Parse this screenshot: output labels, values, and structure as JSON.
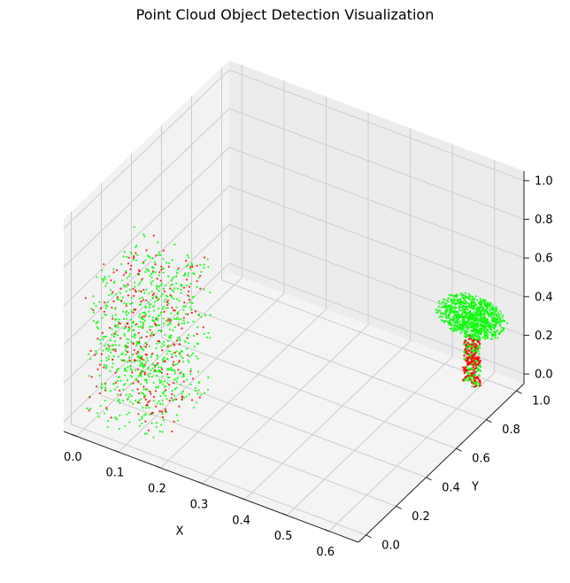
{
  "chart_data": {
    "type": "scatter",
    "projection": "3d",
    "title": "Point Cloud Object Detection Visualization",
    "xlabel": "X",
    "ylabel": "Y",
    "zlabel": "",
    "xlim": [
      -0.03,
      0.67
    ],
    "ylim": [
      -0.05,
      1.05
    ],
    "zlim": [
      -0.05,
      1.05
    ],
    "x_ticks": [
      "0.0",
      "0.1",
      "0.2",
      "0.3",
      "0.4",
      "0.5",
      "0.6"
    ],
    "y_ticks": [
      "0.0",
      "0.2",
      "0.4",
      "0.6",
      "0.8",
      "1.0"
    ],
    "z_ticks": [
      "0.0",
      "0.2",
      "0.4",
      "0.6",
      "0.8",
      "1.0"
    ],
    "grid": true,
    "colors": {
      "green": "#00ff00",
      "red": "#ff0000",
      "pane": "#f2f2f2",
      "grid": "#cccccc"
    },
    "objects": [
      {
        "shape": "box",
        "x_range": [
          0.0,
          0.18
        ],
        "y_range": [
          0.0,
          0.35
        ],
        "z_range": [
          0.0,
          0.75
        ],
        "point_count": 1000,
        "red_fraction": 0.25
      },
      {
        "shape": "tree",
        "trunk_center": [
          0.6,
          0.9
        ],
        "trunk_radius": 0.02,
        "trunk_z_range": [
          0.0,
          0.25
        ],
        "crown_center": [
          0.6,
          0.9,
          0.35
        ],
        "crown_radius": 0.08,
        "crown_point_count": 900,
        "trunk_point_count": 250
      }
    ]
  }
}
